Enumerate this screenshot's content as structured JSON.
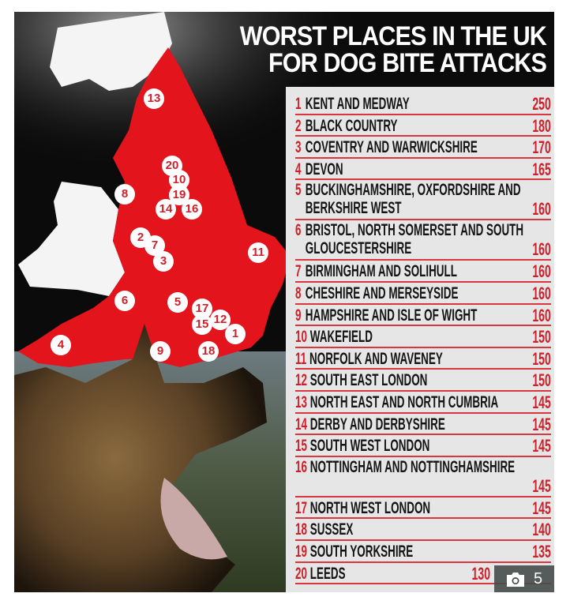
{
  "title": {
    "line1": "WORST PLACES IN THE UK",
    "line2": "FOR DOG BITE ATTACKS"
  },
  "rows": [
    {
      "rank": "1",
      "name": "KENT AND MEDWAY",
      "value": "250"
    },
    {
      "rank": "2",
      "name": "BLACK COUNTRY",
      "value": "180"
    },
    {
      "rank": "3",
      "name": "COVENTRY AND WARWICKSHIRE",
      "value": "170"
    },
    {
      "rank": "4",
      "name": "DEVON",
      "value": "165"
    },
    {
      "rank": "5",
      "name": "BUCKINGHAMSHIRE, OXFORDSHIRE AND BERKSHIRE WEST",
      "value": "160"
    },
    {
      "rank": "6",
      "name": "BRISTOL, NORTH SOMERSET AND SOUTH GLOUCESTERSHIRE",
      "value": "160"
    },
    {
      "rank": "7",
      "name": "BIRMINGHAM AND SOLIHULL",
      "value": "160"
    },
    {
      "rank": "8",
      "name": "CHESHIRE AND MERSEYSIDE",
      "value": "160"
    },
    {
      "rank": "9",
      "name": "HAMPSHIRE AND ISLE OF WIGHT",
      "value": "160"
    },
    {
      "rank": "10",
      "name": "WAKEFIELD",
      "value": "150"
    },
    {
      "rank": "11",
      "name": "NORFOLK AND WAVENEY",
      "value": "150"
    },
    {
      "rank": "12",
      "name": "SOUTH EAST LONDON",
      "value": "150"
    },
    {
      "rank": "13",
      "name": "NORTH EAST AND NORTH CUMBRIA",
      "value": "145"
    },
    {
      "rank": "14",
      "name": "DERBY AND DERBYSHIRE",
      "value": "145"
    },
    {
      "rank": "15",
      "name": "SOUTH WEST LONDON",
      "value": "145"
    },
    {
      "rank": "16",
      "name": "NOTTINGHAM AND NOTTINGHAMSHIRE",
      "value": "145"
    },
    {
      "rank": "17",
      "name": "NORTH WEST LONDON",
      "value": "145"
    },
    {
      "rank": "18",
      "name": "SUSSEX",
      "value": "140"
    },
    {
      "rank": "19",
      "name": "SOUTH YORKSHIRE",
      "value": "135"
    },
    {
      "rank": "20",
      "name": "LEEDS",
      "value": "130"
    }
  ],
  "map_markers": [
    "1",
    "2",
    "3",
    "4",
    "5",
    "6",
    "7",
    "8",
    "9",
    "10",
    "11",
    "12",
    "13",
    "14",
    "15",
    "16",
    "17",
    "18",
    "19",
    "20"
  ],
  "gallery_badge": {
    "icon": "camera-icon",
    "count": "5"
  },
  "colors": {
    "accent": "#d11f2a",
    "panel": "#e6e6e6",
    "background": "#0b0b0b"
  }
}
